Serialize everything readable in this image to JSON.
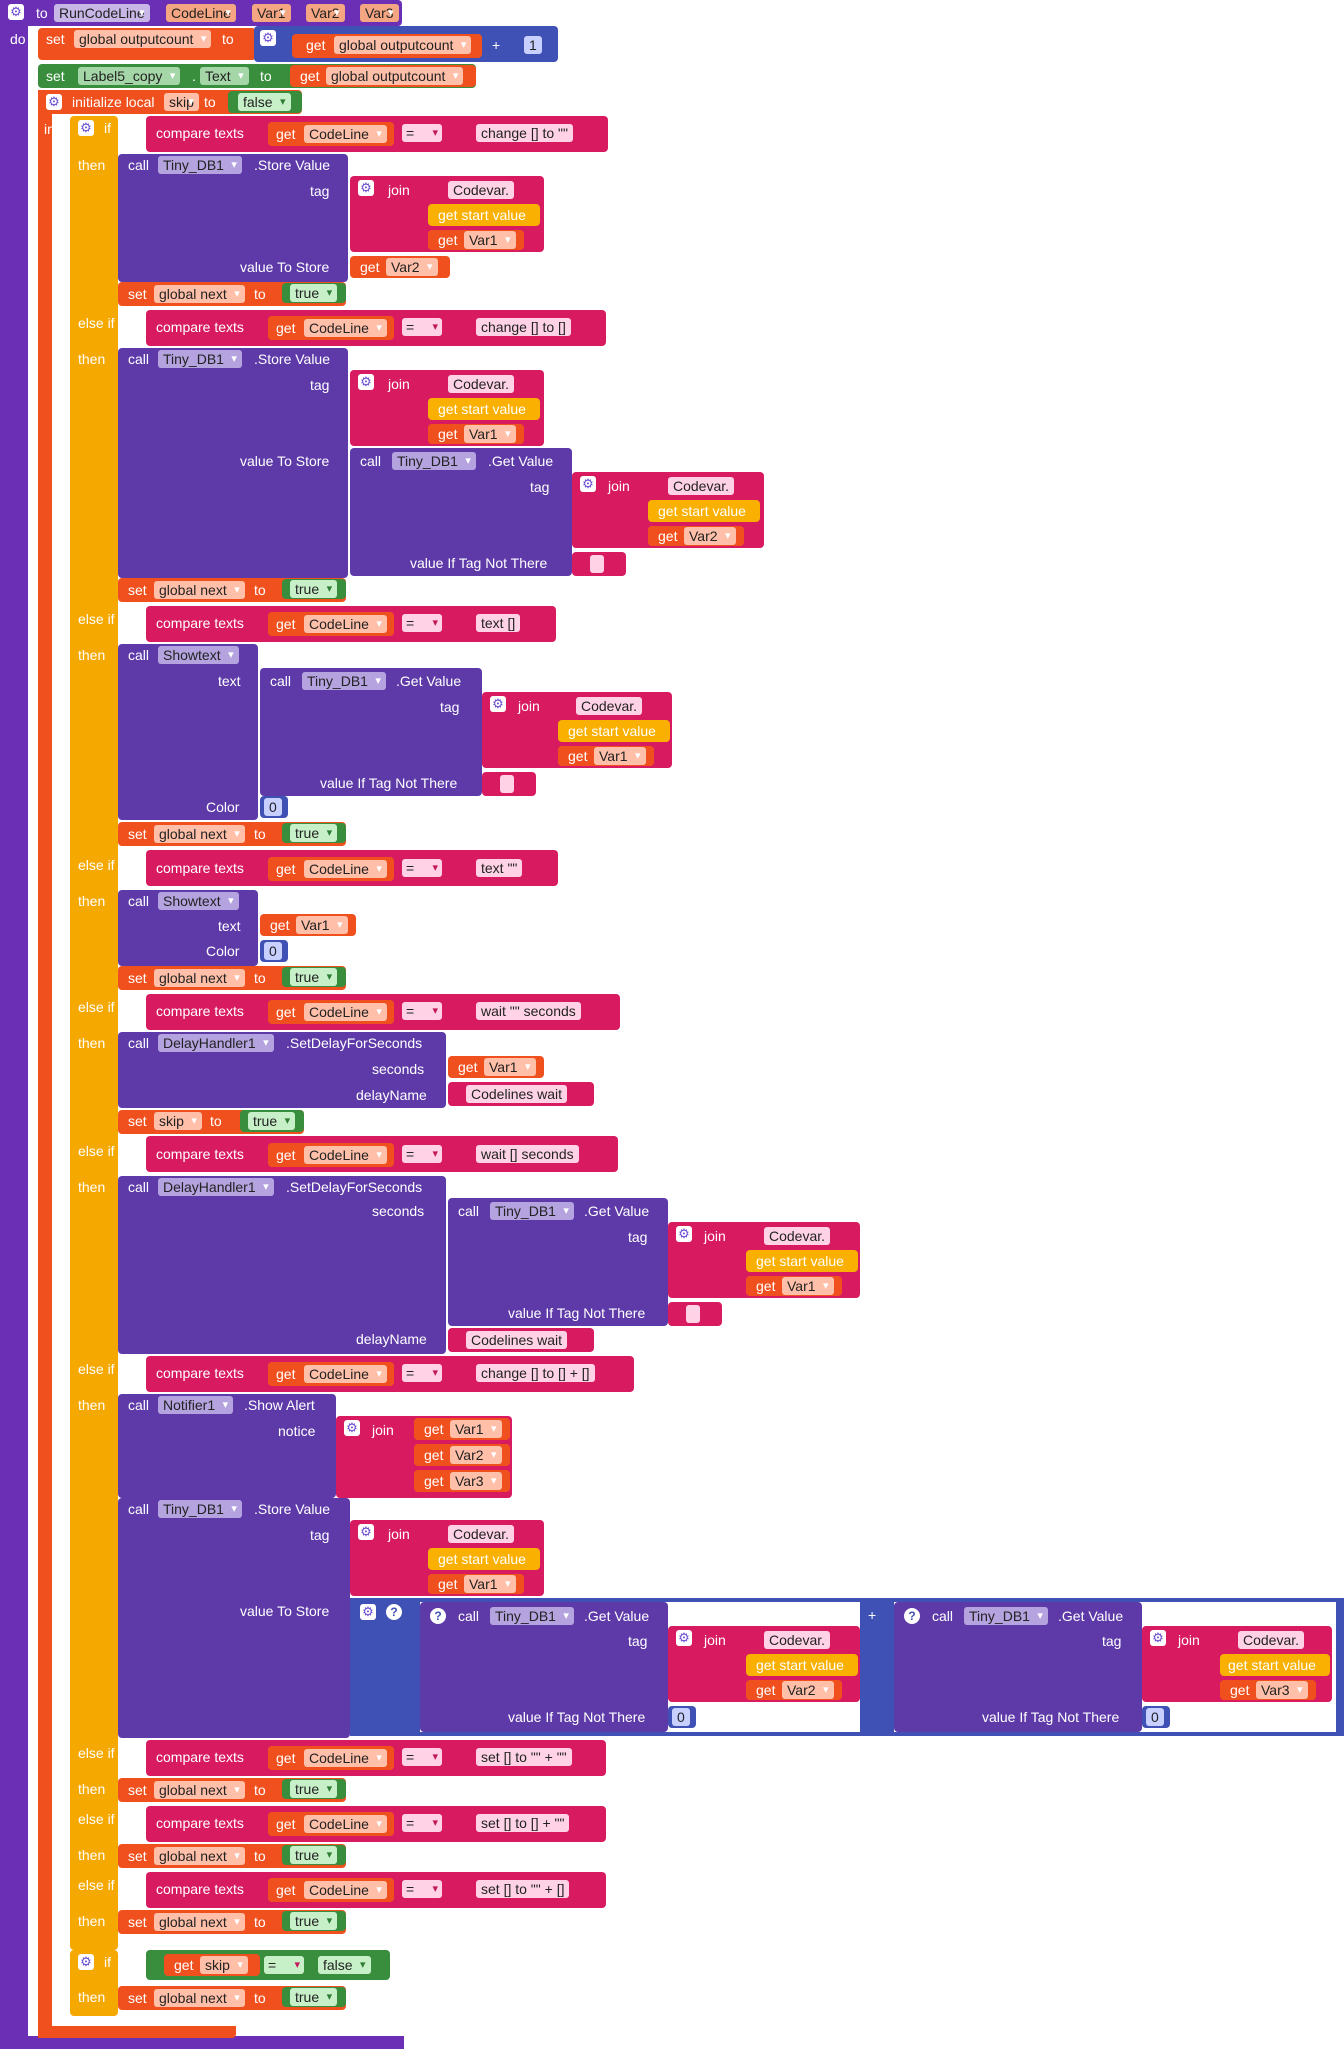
{
  "header": {
    "to": "to",
    "name": "RunCodeLine",
    "params": [
      "CodeLine",
      "Var1",
      "Var2",
      "Var3"
    ],
    "do": "do",
    "in": "in"
  },
  "kw": {
    "set": "set",
    "get": "get",
    "to": "to",
    "call": "call",
    "if": "if",
    "then": "then",
    "elseif": "else if",
    "join": "join",
    "compare": "compare texts",
    "initialize": "initialize local",
    "eq": "=",
    "plus": "+",
    "tag": "tag",
    "value_to_store": "value To Store",
    "value_if_not": "value If Tag Not There",
    "text": "text",
    "color": "Color",
    "seconds": "seconds",
    "delay_name": "delayName",
    "notice": "notice",
    "get_start": "get start value",
    "store_value": ".Store Value",
    "get_value": ".Get Value",
    "set_delay": ".SetDelayForSeconds",
    "show_alert": ".Show Alert",
    "dot": "."
  },
  "vars": {
    "outputcount": "global outputcount",
    "next": "global next",
    "skip": "skip",
    "codeline": "CodeLine",
    "var1": "Var1",
    "var2": "Var2",
    "var3": "Var3",
    "label": "Label5_copy",
    "text_prop": "Text"
  },
  "comp": {
    "tinydb": "Tiny_DB1",
    "showtext": "Showtext",
    "delay": "DelayHandler1",
    "notifier": "Notifier1"
  },
  "vals": {
    "one": "1",
    "zero": "0",
    "true": "true",
    "false": "false",
    "empty": ""
  },
  "strings": {
    "codevar": "Codevar.",
    "c1": "change [] to \"\"",
    "c2": "change [] to []",
    "c3": "text []",
    "c4": "text \"\"",
    "c5": "wait \"\" seconds",
    "c6": "wait [] seconds",
    "c7": "change [] to [] + []",
    "c8": "set [] to \"\" + \"\"",
    "c9": "set [] to [] + \"\"",
    "c10": "set [] to \"\" + []",
    "delay_name": "Codelines wait"
  },
  "colors": {
    "procedure": "#6a2fb5",
    "set_orange": "#f0501e",
    "if_yellow": "#f5a800",
    "text_red": "#d81b60",
    "blue": "#3f51b5",
    "green": "#388e3c",
    "purple_call": "#5e3aa8",
    "start_value": "#f9b000"
  }
}
